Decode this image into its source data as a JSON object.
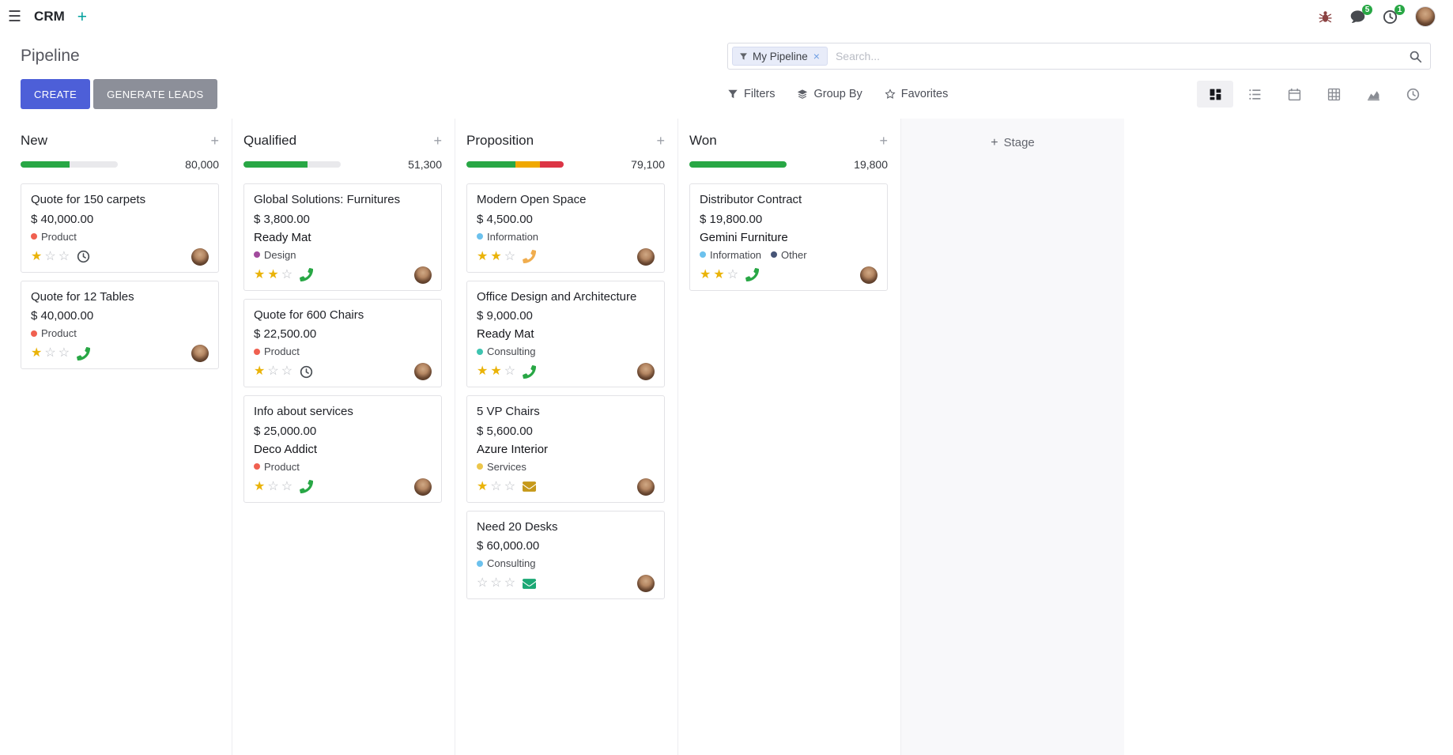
{
  "colors": {
    "primary": "#4d5fd8",
    "secondary": "#8c8f99",
    "success": "#28a745",
    "star": "#eab308",
    "badge": "#28a745"
  },
  "navbar": {
    "menu_glyph": "☰",
    "app_name": "CRM",
    "add_glyph": "+",
    "messages_badge": "5",
    "activities_badge": "1"
  },
  "control_panel": {
    "title": "Pipeline",
    "create_label": "CREATE",
    "generate_leads_label": "GENERATE LEADS",
    "filters_label": "Filters",
    "group_by_label": "Group By",
    "favorites_label": "Favorites",
    "search": {
      "facet_label": "My Pipeline",
      "remove_glyph": "×",
      "placeholder": "Search..."
    },
    "view_switcher": {
      "active": "kanban",
      "items": [
        "kanban",
        "list",
        "calendar",
        "pivot",
        "graph",
        "activity"
      ]
    }
  },
  "board": {
    "quick_add_glyph": "+",
    "star_filled_glyph": "★",
    "star_empty_glyph": "☆",
    "add_stage_label": "Stage",
    "columns": [
      {
        "name": "New",
        "amount": "80,000",
        "progress": [
          {
            "color": "#28a745",
            "pct": 50
          }
        ],
        "cards": [
          {
            "title": "Quote for 150 carpets",
            "amount": "$ 40,000.00",
            "tags": [
              {
                "label": "Product",
                "color": "#f06050"
              }
            ],
            "stars": 1,
            "activity": {
              "type": "clock",
              "color": "#4a4f54"
            }
          },
          {
            "title": "Quote for 12 Tables",
            "amount": "$ 40,000.00",
            "tags": [
              {
                "label": "Product",
                "color": "#f06050"
              }
            ],
            "stars": 1,
            "activity": {
              "type": "phone",
              "color": "#28a745"
            }
          }
        ]
      },
      {
        "name": "Qualified",
        "amount": "51,300",
        "progress": [
          {
            "color": "#28a745",
            "pct": 66
          }
        ],
        "cards": [
          {
            "title": "Global Solutions: Furnitures",
            "amount": "$ 3,800.00",
            "partner": "Ready Mat",
            "tags": [
              {
                "label": "Design",
                "color": "#a24b9d"
              }
            ],
            "stars": 2,
            "activity": {
              "type": "phone",
              "color": "#28a745"
            }
          },
          {
            "title": "Quote for 600 Chairs",
            "amount": "$ 22,500.00",
            "tags": [
              {
                "label": "Product",
                "color": "#f06050"
              }
            ],
            "stars": 1,
            "activity": {
              "type": "clock",
              "color": "#4a4f54"
            }
          },
          {
            "title": "Info about services",
            "amount": "$ 25,000.00",
            "partner": "Deco Addict",
            "tags": [
              {
                "label": "Product",
                "color": "#f06050"
              }
            ],
            "stars": 1,
            "activity": {
              "type": "phone",
              "color": "#28a745"
            }
          }
        ]
      },
      {
        "name": "Proposition",
        "amount": "79,100",
        "progress": [
          {
            "color": "#28a745",
            "pct": 50
          },
          {
            "color": "#f0a800",
            "pct": 26
          },
          {
            "color": "#dc3545",
            "pct": 24
          }
        ],
        "cards": [
          {
            "title": "Modern Open Space",
            "amount": "$ 4,500.00",
            "tags": [
              {
                "label": "Information",
                "color": "#6cc1ed"
              }
            ],
            "stars": 2,
            "activity": {
              "type": "phone",
              "color": "#f0ad4e"
            }
          },
          {
            "title": "Office Design and Architecture",
            "amount": "$ 9,000.00",
            "partner": "Ready Mat",
            "tags": [
              {
                "label": "Consulting",
                "color": "#3ec4b0"
              }
            ],
            "stars": 2,
            "activity": {
              "type": "phone",
              "color": "#28a745"
            }
          },
          {
            "title": "5 VP Chairs",
            "amount": "$ 5,600.00",
            "partner": "Azure Interior",
            "tags": [
              {
                "label": "Services",
                "color": "#ecc64b"
              }
            ],
            "stars": 1,
            "activity": {
              "type": "envelope",
              "color": "#c6991a"
            }
          },
          {
            "title": "Need 20 Desks",
            "amount": "$ 60,000.00",
            "tags": [
              {
                "label": "Consulting",
                "color": "#6cc1ed"
              }
            ],
            "stars": 0,
            "activity": {
              "type": "envelope",
              "color": "#1aa874"
            }
          }
        ]
      },
      {
        "name": "Won",
        "amount": "19,800",
        "progress": [
          {
            "color": "#28a745",
            "pct": 100
          }
        ],
        "cards": [
          {
            "title": "Distributor Contract",
            "amount": "$ 19,800.00",
            "partner": "Gemini Furniture",
            "tags": [
              {
                "label": "Information",
                "color": "#6cc1ed"
              },
              {
                "label": "Other",
                "color": "#475577"
              }
            ],
            "stars": 2,
            "activity": {
              "type": "phone",
              "color": "#28a745"
            }
          }
        ]
      }
    ]
  }
}
